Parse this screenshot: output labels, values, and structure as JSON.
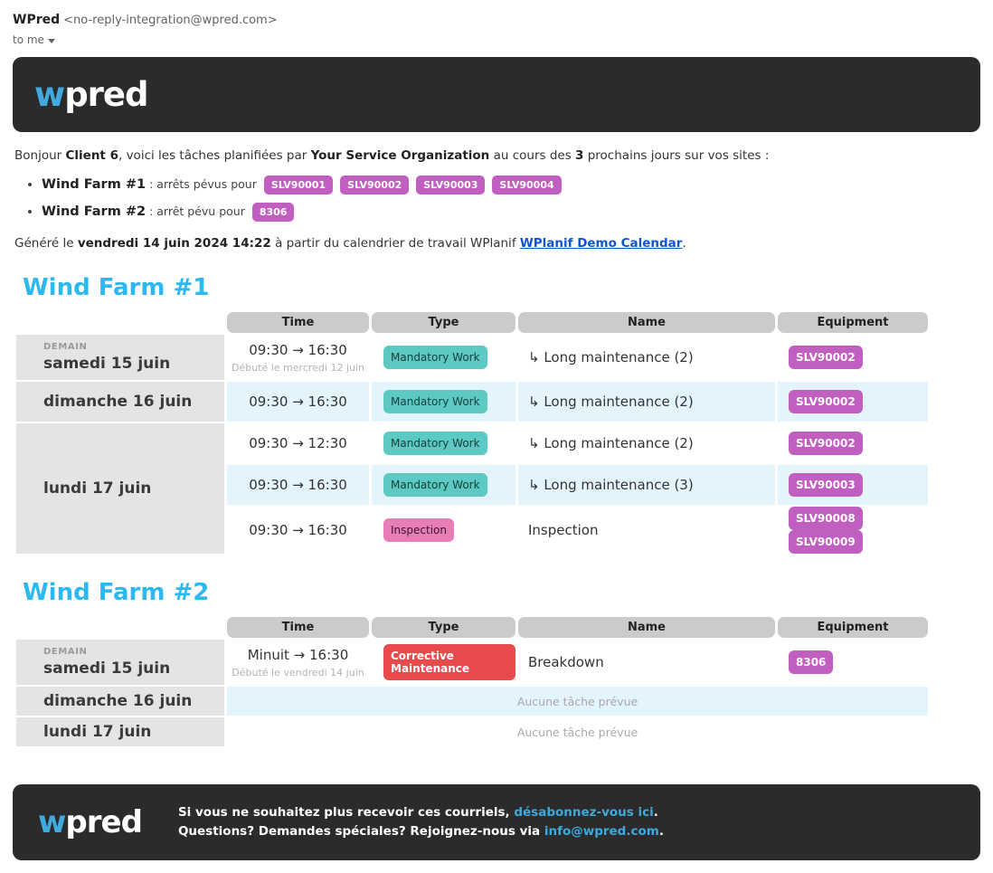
{
  "email_header": {
    "sender_name": "WPred",
    "sender_address": "<no-reply-integration@wpred.com>",
    "recipient_label": "to me"
  },
  "brand": {
    "logo_w": "w",
    "logo_rest": "pred"
  },
  "colors": {
    "accent_heading": "#2cb9f2",
    "logo_blue": "#41aadf",
    "banner_bg": "#2b2b2b",
    "badge_equipment": "#c05fc0",
    "badge_mandatory_work": "#5cc9c2",
    "badge_inspection": "#e77eb5",
    "badge_corrective": "#e84b4b",
    "row_highlight": "#e3f4fd",
    "date_cell_bg": "#e4e4e4",
    "column_header_bg": "#cbcbcb",
    "calendar_link": "#1155cc",
    "footer_link": "#3ea9dc"
  },
  "intro": {
    "prefix": "Bonjour ",
    "client": "Client 6",
    "mid1": ", voici les tâches planifiées par ",
    "org": "Your Service Organization",
    "mid2": " au cours des ",
    "days": "3",
    "suffix": " prochains jours sur vos sites :"
  },
  "summary": [
    {
      "site": "Wind Farm #1",
      "text": " : arrêts pévus pour",
      "badges": [
        "SLV90001",
        "SLV90002",
        "SLV90003",
        "SLV90004"
      ]
    },
    {
      "site": "Wind Farm #2",
      "text": " : arrêt pévu pour",
      "badges": [
        "8306"
      ]
    }
  ],
  "generated": {
    "prefix": "Généré le ",
    "datetime": "vendredi 14 juin 2024 14:22",
    "mid": " à partir du calendrier de travail WPlanif ",
    "link": "WPlanif Demo Calendar",
    "suffix": "."
  },
  "table_headers": {
    "time": "Time",
    "type": "Type",
    "name": "Name",
    "equipment": "Equipment"
  },
  "wf1": {
    "title": "Wind Farm #1",
    "days": [
      {
        "tag": "DEMAIN",
        "date": "samedi 15 juin"
      },
      {
        "date": "dimanche 16 juin"
      },
      {
        "date": "lundi 17 juin"
      }
    ],
    "tasks": [
      {
        "time": "09:30 → 16:30",
        "time_note": "Débuté le mercredi 12 juin",
        "type": "Mandatory Work",
        "name": "↳ Long maintenance (2)",
        "equipment": [
          "SLV90002"
        ]
      },
      {
        "time": "09:30 → 16:30",
        "type": "Mandatory Work",
        "name": "↳ Long maintenance (2)",
        "equipment": [
          "SLV90002"
        ]
      },
      {
        "time": "09:30 → 12:30",
        "type": "Mandatory Work",
        "name": "↳ Long maintenance (2)",
        "equipment": [
          "SLV90002"
        ]
      },
      {
        "time": "09:30 → 16:30",
        "type": "Mandatory Work",
        "name": "↳ Long maintenance (3)",
        "equipment": [
          "SLV90003"
        ]
      },
      {
        "time": "09:30 → 16:30",
        "type": "Inspection",
        "name": "Inspection",
        "equipment": [
          "SLV90008",
          "SLV90009"
        ]
      }
    ]
  },
  "wf2": {
    "title": "Wind Farm #2",
    "days": [
      {
        "tag": "DEMAIN",
        "date": "samedi 15 juin"
      },
      {
        "date": "dimanche 16 juin"
      },
      {
        "date": "lundi 17 juin"
      }
    ],
    "task": {
      "time": "Minuit → 16:30",
      "time_note": "Débuté le vendredi 14 juin",
      "type": "Corrective Maintenance",
      "name": "Breakdown",
      "equipment": [
        "8306"
      ]
    },
    "empty_text": "Aucune tâche prévue"
  },
  "footer": {
    "line1_prefix": "Si vous ne souhaitez plus recevoir ces courriels, ",
    "line1_link": "désabonnez-vous ici",
    "line1_suffix": ".",
    "line2_prefix": "Questions? Demandes spéciales? Rejoignez-nous via ",
    "line2_link": "info@wpred.com",
    "line2_suffix": "."
  }
}
